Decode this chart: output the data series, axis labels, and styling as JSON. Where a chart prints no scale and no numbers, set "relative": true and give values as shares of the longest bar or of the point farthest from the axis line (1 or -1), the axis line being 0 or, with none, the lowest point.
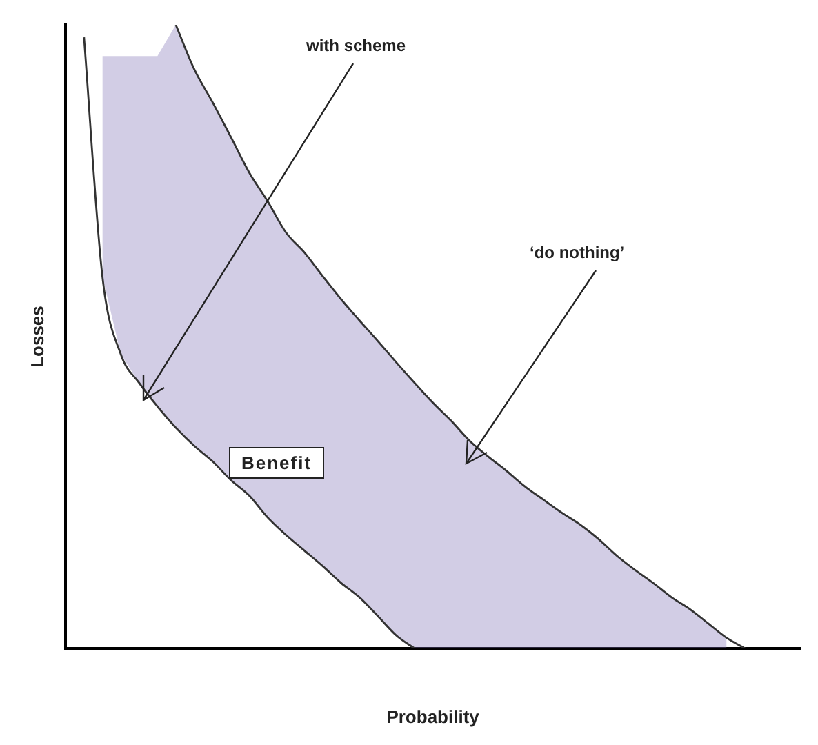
{
  "chart_data": {
    "type": "line",
    "relative": true,
    "xlabel": "Probability",
    "ylabel": "Losses",
    "categories": [
      null,
      null,
      null,
      null,
      null,
      null,
      null,
      null,
      null,
      null,
      null,
      null,
      null,
      null,
      null,
      null,
      null,
      null,
      null,
      null,
      null,
      null,
      null,
      null,
      null,
      null,
      null,
      null,
      null,
      null,
      null,
      null,
      null,
      null,
      null,
      null,
      null,
      null,
      null,
      null,
      null
    ],
    "series": [
      {
        "color": "#333333",
        "values": [
          null,
          null,
          null,
          null,
          null,
          null,
          1,
          0.929,
          0.876,
          0.82,
          0.763,
          0.717,
          0.667,
          0.635,
          0.597,
          0.56,
          0.526,
          0.493,
          0.459,
          0.426,
          0.394,
          0.365,
          0.333,
          0.308,
          0.285,
          0.26,
          0.239,
          0.218,
          0.199,
          0.176,
          0.149,
          0.126,
          0.105,
          0.082,
          0.063,
          0.04,
          0.017,
          0,
          null,
          null,
          null
        ],
        "upper": [
          null,
          null,
          0.95,
          0.95,
          0.95,
          0.95,
          1,
          0.929,
          0.876,
          0.82,
          0.763,
          0.717,
          0.667,
          0.635,
          0.597,
          0.56,
          0.526,
          0.493,
          0.459,
          0.426,
          0.394,
          0.365,
          0.333,
          0.308,
          0.285,
          0.26,
          0.239,
          0.218,
          0.199,
          0.176,
          0.149,
          0.126,
          0.105,
          0.082,
          0.063,
          0.04,
          0.017,
          null,
          null,
          null,
          null
        ],
        "lower": [
          null,
          null,
          0.597,
          0.472,
          0.426,
          0.388,
          0.354,
          0.325,
          0.3,
          0.27,
          0.245,
          0.21,
          0.182,
          0.157,
          0.132,
          0.105,
          0.082,
          0.052,
          0.021,
          0,
          0,
          0,
          0,
          0,
          0,
          0,
          0,
          0,
          0,
          0,
          0,
          0,
          0,
          0,
          0,
          0,
          0,
          null,
          null,
          null,
          null
        ]
      },
      {
        "color": "#333333",
        "values": [
          null,
          0.98,
          0.597,
          0.472,
          0.426,
          0.388,
          0.354,
          0.325,
          0.3,
          0.27,
          0.245,
          0.21,
          0.182,
          0.157,
          0.132,
          0.105,
          0.082,
          0.052,
          0.021,
          0,
          null,
          null,
          null,
          null,
          null,
          null,
          null,
          null,
          null,
          null,
          null,
          null,
          null,
          null,
          null,
          null,
          null,
          null,
          null,
          null,
          null
        ]
      }
    ],
    "annotations": [
      "with scheme",
      "‘do nothing’",
      "Benefit"
    ],
    "grid": false,
    "legend": false,
    "marker": "none",
    "line_style": "solid"
  }
}
